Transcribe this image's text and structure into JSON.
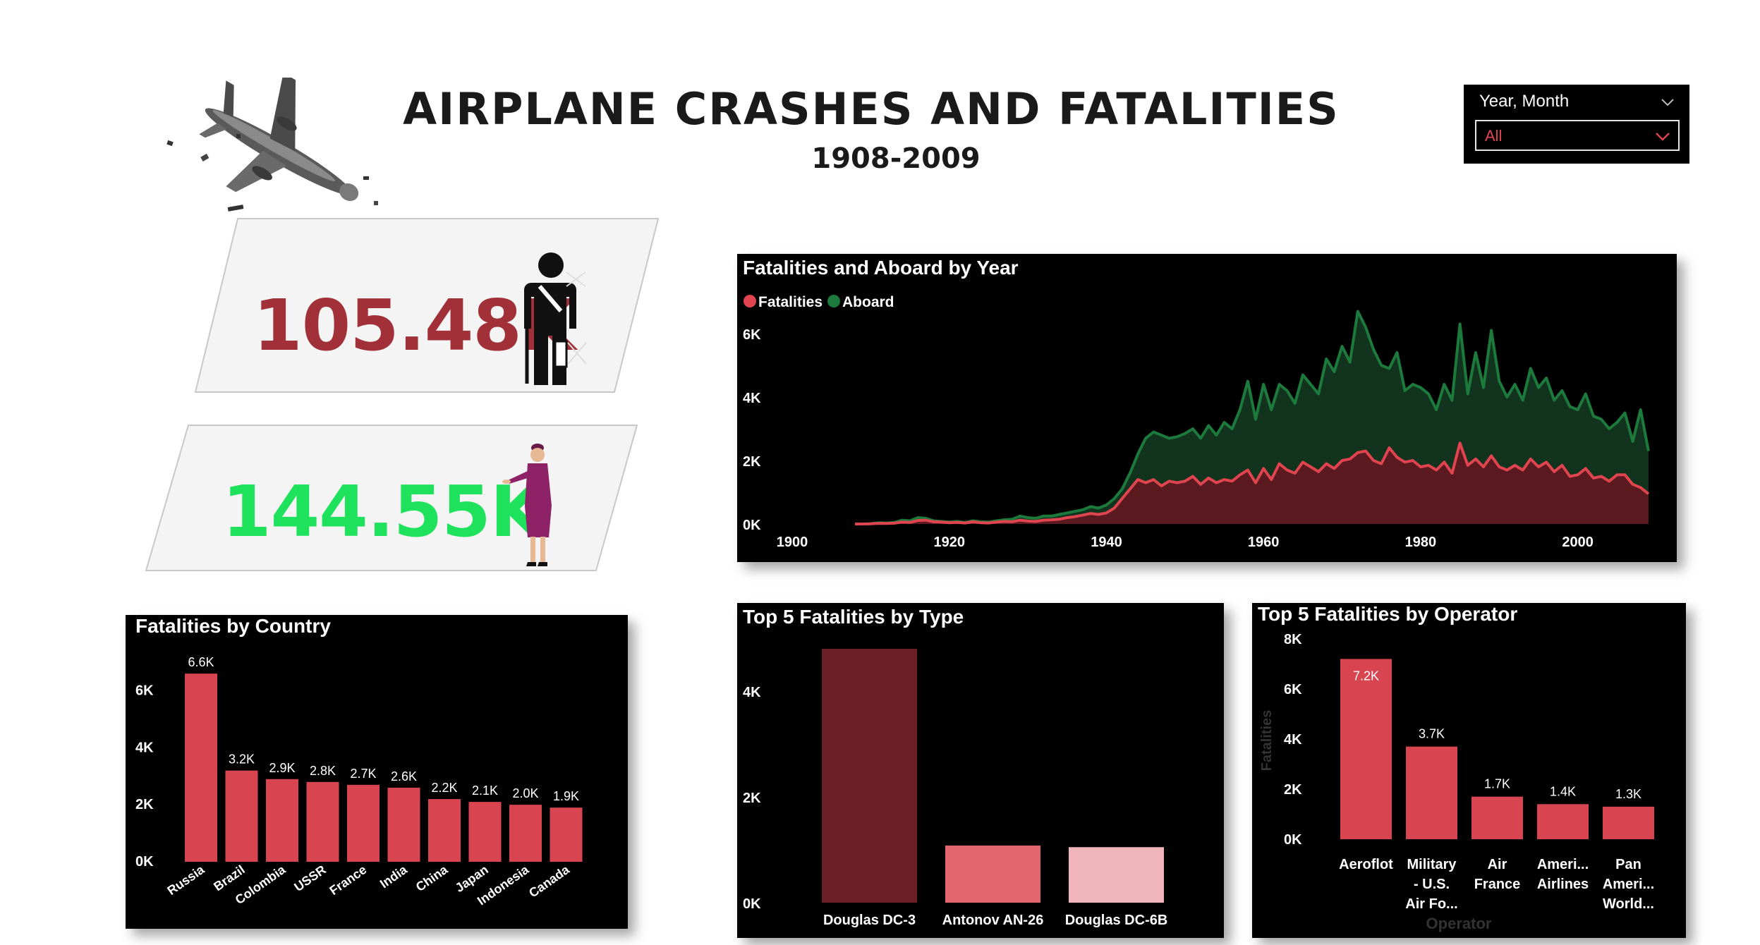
{
  "header": {
    "title": "AIRPLANE CRASHES AND FATALITIES",
    "subtitle": "1908-2009"
  },
  "slicer": {
    "label": "Year, Month",
    "value": "All"
  },
  "kpis": {
    "fatalities": {
      "value": "105.48K",
      "color": "#a13038",
      "icon": "injured-person-icon"
    },
    "aboard": {
      "value": "144.55K",
      "color": "#1fe25c",
      "icon": "flight-attendant-icon"
    }
  },
  "colors": {
    "fatalities": "#e0444f",
    "aboard": "#1c7a3c",
    "bar": "#d84551",
    "dc3": "#6b2027",
    "an26": "#e36570",
    "dc6b": "#efb5bb"
  },
  "chart_data": [
    {
      "id": "year",
      "type": "area",
      "title": "Fatalities and Aboard by Year",
      "legend": [
        "Fatalities",
        "Aboard"
      ],
      "legend_position": "top-left",
      "x_ticks": [
        "1900",
        "1920",
        "1940",
        "1960",
        "1980",
        "2000"
      ],
      "y_ticks": [
        "0K",
        "2K",
        "4K",
        "6K"
      ],
      "xlim": [
        1900,
        2010
      ],
      "ylim": [
        0,
        7000
      ],
      "series": [
        {
          "name": "Fatalities",
          "x": [
            1908,
            1909,
            1910,
            1911,
            1912,
            1913,
            1914,
            1915,
            1916,
            1917,
            1918,
            1919,
            1920,
            1921,
            1922,
            1923,
            1924,
            1925,
            1926,
            1927,
            1928,
            1929,
            1930,
            1931,
            1932,
            1933,
            1934,
            1935,
            1936,
            1937,
            1938,
            1939,
            1940,
            1941,
            1942,
            1943,
            1944,
            1945,
            1946,
            1947,
            1948,
            1949,
            1950,
            1951,
            1952,
            1953,
            1954,
            1955,
            1956,
            1957,
            1958,
            1959,
            1960,
            1961,
            1962,
            1963,
            1964,
            1965,
            1966,
            1967,
            1968,
            1969,
            1970,
            1971,
            1972,
            1973,
            1974,
            1975,
            1976,
            1977,
            1978,
            1979,
            1980,
            1981,
            1982,
            1983,
            1984,
            1985,
            1986,
            1987,
            1988,
            1989,
            1990,
            1991,
            1992,
            1993,
            1994,
            1995,
            1996,
            1997,
            1998,
            1999,
            2000,
            2001,
            2002,
            2003,
            2004,
            2005,
            2006,
            2007,
            2008,
            2009
          ],
          "y": [
            1,
            0,
            5,
            20,
            15,
            25,
            60,
            50,
            110,
            120,
            70,
            60,
            40,
            50,
            30,
            70,
            40,
            30,
            60,
            80,
            70,
            120,
            90,
            80,
            120,
            130,
            150,
            200,
            230,
            280,
            330,
            300,
            350,
            500,
            800,
            1100,
            1400,
            1300,
            1400,
            1200,
            1350,
            1300,
            1350,
            1500,
            1250,
            1450,
            1300,
            1400,
            1350,
            1550,
            1700,
            1300,
            1750,
            1400,
            1900,
            1700,
            1600,
            1950,
            1800,
            1650,
            1900,
            1750,
            2000,
            2050,
            2250,
            2300,
            2000,
            1900,
            2400,
            2100,
            1950,
            2000,
            1800,
            1850,
            1700,
            1950,
            1600,
            2550,
            1850,
            2050,
            1800,
            2150,
            1800,
            1700,
            1850,
            1700,
            2050,
            1800,
            1950,
            1650,
            1850,
            1500,
            1550,
            1750,
            1450,
            1500,
            1350,
            1550,
            1550,
            1250,
            1150,
            950
          ]
        },
        {
          "name": "Aboard",
          "x": [
            1908,
            1909,
            1910,
            1911,
            1912,
            1913,
            1914,
            1915,
            1916,
            1917,
            1918,
            1919,
            1920,
            1921,
            1922,
            1923,
            1924,
            1925,
            1926,
            1927,
            1928,
            1929,
            1930,
            1931,
            1932,
            1933,
            1934,
            1935,
            1936,
            1937,
            1938,
            1939,
            1940,
            1941,
            1942,
            1943,
            1944,
            1945,
            1946,
            1947,
            1948,
            1949,
            1950,
            1951,
            1952,
            1953,
            1954,
            1955,
            1956,
            1957,
            1958,
            1959,
            1960,
            1961,
            1962,
            1963,
            1964,
            1965,
            1966,
            1967,
            1968,
            1969,
            1970,
            1971,
            1972,
            1973,
            1974,
            1975,
            1976,
            1977,
            1978,
            1979,
            1980,
            1981,
            1982,
            1983,
            1984,
            1985,
            1986,
            1987,
            1988,
            1989,
            1990,
            1991,
            1992,
            1993,
            1994,
            1995,
            1996,
            1997,
            1998,
            1999,
            2000,
            2001,
            2002,
            2003,
            2004,
            2005,
            2006,
            2007,
            2008,
            2009
          ],
          "y": [
            2,
            1,
            10,
            40,
            30,
            50,
            120,
            100,
            200,
            180,
            100,
            80,
            60,
            80,
            50,
            100,
            70,
            60,
            100,
            130,
            150,
            250,
            200,
            180,
            250,
            250,
            300,
            350,
            400,
            450,
            550,
            500,
            600,
            800,
            1100,
            1600,
            2200,
            2700,
            2900,
            2800,
            2700,
            2750,
            2850,
            3000,
            2700,
            3100,
            2800,
            3200,
            3000,
            3600,
            4500,
            3300,
            4400,
            3600,
            4400,
            4200,
            3800,
            4700,
            4400,
            4100,
            5200,
            4800,
            5600,
            5100,
            6700,
            6200,
            5500,
            5000,
            4900,
            5400,
            4200,
            4400,
            4300,
            4100,
            3600,
            4400,
            3900,
            6300,
            4100,
            5400,
            4300,
            6100,
            4500,
            4000,
            4400,
            3900,
            4900,
            4300,
            4600,
            3900,
            4200,
            3700,
            3600,
            4100,
            3400,
            3300,
            3000,
            3200,
            3500,
            2600,
            3600,
            2300
          ]
        }
      ]
    },
    {
      "id": "country",
      "type": "bar",
      "title": "Fatalities by Country",
      "categories": [
        "Russia",
        "Brazil",
        "Colombia",
        "USSR",
        "France",
        "India",
        "China",
        "Japan",
        "Indonesia",
        "Canada"
      ],
      "values": [
        6600,
        3200,
        2900,
        2800,
        2700,
        2600,
        2200,
        2100,
        2000,
        1900
      ],
      "data_labels": [
        "6.6K",
        "3.2K",
        "2.9K",
        "2.8K",
        "2.7K",
        "2.6K",
        "2.2K",
        "2.1K",
        "2.0K",
        "1.9K"
      ],
      "y_ticks": [
        "0K",
        "2K",
        "4K",
        "6K"
      ],
      "ylim": [
        0,
        7000
      ]
    },
    {
      "id": "type",
      "type": "bar",
      "title": "Top 5 Fatalities by Type",
      "categories": [
        "Douglas DC-3",
        "Antonov AN-26",
        "Douglas DC-6B"
      ],
      "values": [
        4800,
        1080,
        1050
      ],
      "y_ticks": [
        "0K",
        "2K",
        "4K"
      ],
      "ylim": [
        0,
        5000
      ]
    },
    {
      "id": "operator",
      "type": "bar",
      "title": "Top 5 Fatalities by Operator",
      "categories": [
        [
          "Aeroflot"
        ],
        [
          "Military",
          "- U.S.",
          "Air Fo..."
        ],
        [
          "Air",
          "France"
        ],
        [
          "Ameri...",
          "Airlines"
        ],
        [
          "Pan",
          "Ameri...",
          "World..."
        ]
      ],
      "values": [
        7200,
        3700,
        1700,
        1400,
        1300
      ],
      "data_labels": [
        "7.2K",
        "3.7K",
        "1.7K",
        "1.4K",
        "1.3K"
      ],
      "y_ticks": [
        "0K",
        "2K",
        "4K",
        "6K",
        "8K"
      ],
      "ylim": [
        0,
        8000
      ],
      "ylabel": "Fatalities",
      "xlabel": "Operator"
    }
  ]
}
